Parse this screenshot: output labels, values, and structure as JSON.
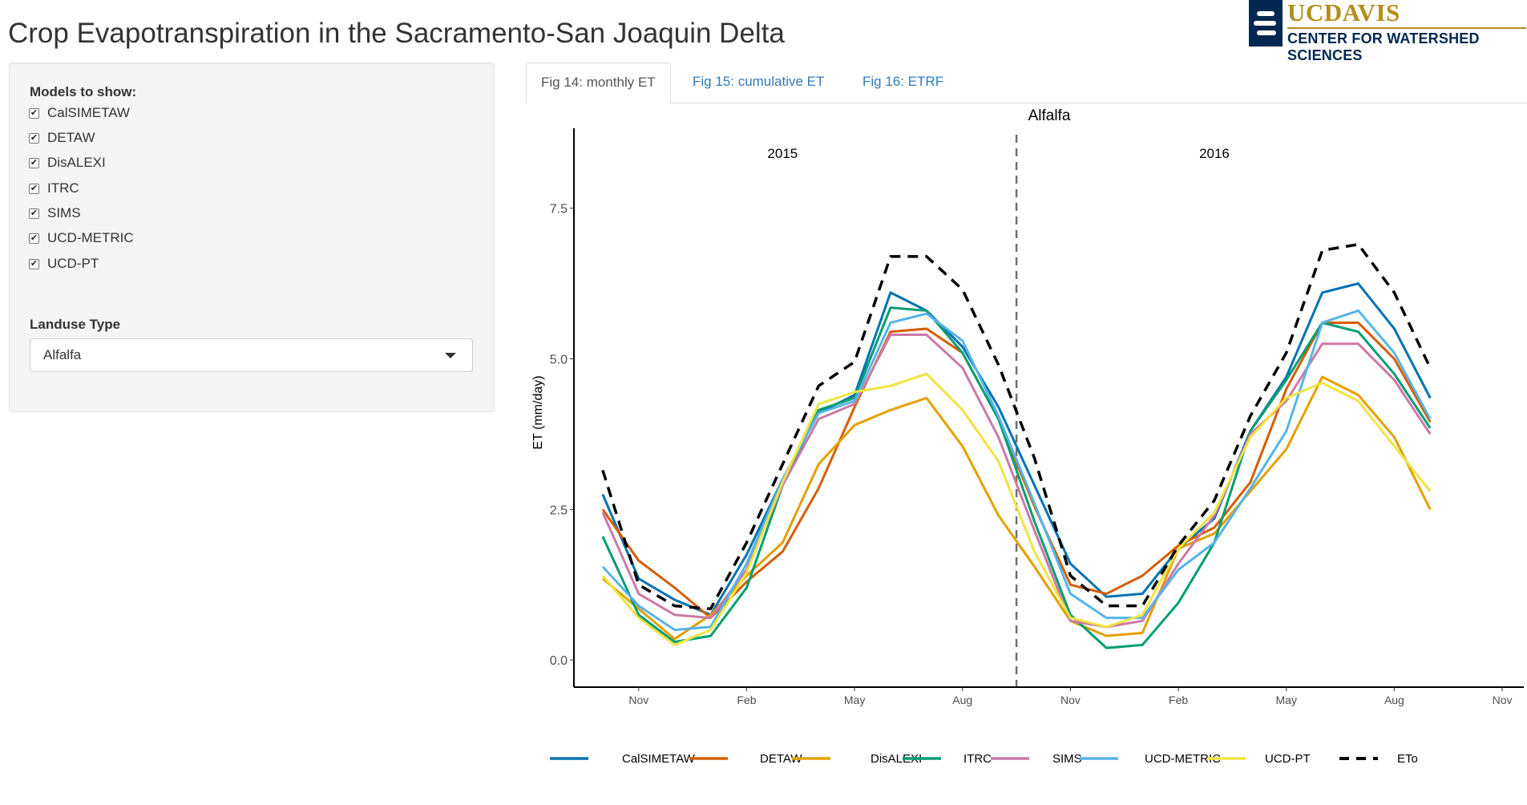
{
  "page": {
    "title": "Crop Evapotranspiration in the Sacramento-San Joaquin Delta",
    "logo": {
      "brand": "UCDAVIS",
      "subtitle": "CENTER FOR WATERSHED SCIENCES"
    }
  },
  "sidebar": {
    "models_label": "Models to show:",
    "models": [
      {
        "label": "CalSIMETAW",
        "checked": true
      },
      {
        "label": "DETAW",
        "checked": true
      },
      {
        "label": "DisALEXI",
        "checked": true
      },
      {
        "label": "ITRC",
        "checked": true
      },
      {
        "label": "SIMS",
        "checked": true
      },
      {
        "label": "UCD-METRIC",
        "checked": true
      },
      {
        "label": "UCD-PT",
        "checked": true
      }
    ],
    "landuse_label": "Landuse Type",
    "landuse_value": "Alfalfa"
  },
  "tabs": [
    {
      "label": "Fig 14: monthly ET",
      "active": true
    },
    {
      "label": "Fig 15: cumulative ET",
      "active": false
    },
    {
      "label": "Fig 16: ETRF",
      "active": false
    }
  ],
  "chart_data": {
    "type": "line",
    "title": "Alfalfa",
    "panel_labels": [
      "2015",
      "2016"
    ],
    "ylabel": "ET (mm/day)",
    "xlabel": "",
    "ylim": [
      -0.45,
      9.2
    ],
    "yticks": [
      0.0,
      2.5,
      5.0,
      7.5
    ],
    "ytick_labels": [
      "0.0",
      "2.5",
      "5.0",
      "7.5"
    ],
    "xlim": [
      -0.8,
      25.6
    ],
    "xticks": [
      1,
      4,
      7,
      10,
      13,
      16,
      19,
      22,
      25
    ],
    "xtick_labels": [
      "Nov",
      "Feb",
      "May",
      "Aug",
      "Nov",
      "Feb",
      "May",
      "Aug",
      "Nov"
    ],
    "x": [
      "2014-10",
      "2014-11",
      "2014-12",
      "2015-01",
      "2015-02",
      "2015-03",
      "2015-04",
      "2015-05",
      "2015-06",
      "2015-07",
      "2015-08",
      "2015-09",
      "2015-10",
      "2015-11",
      "2015-12",
      "2016-01",
      "2016-02",
      "2016-03",
      "2016-04",
      "2016-05",
      "2016-06",
      "2016-07",
      "2016-08",
      "2016-09"
    ],
    "water_year_divider": "2015-09/2015-10",
    "legend_position": "bottom",
    "grid": false,
    "series": [
      {
        "name": "CalSIMETAW",
        "color": "#0072B2",
        "dashed": false,
        "values": [
          2.75,
          1.35,
          1.0,
          0.75,
          1.75,
          3.0,
          4.1,
          4.4,
          6.1,
          5.8,
          5.2,
          4.2,
          2.9,
          1.6,
          1.05,
          1.1,
          1.85,
          2.35,
          3.8,
          4.7,
          6.1,
          6.25,
          5.5,
          4.35
        ]
      },
      {
        "name": "DETAW",
        "color": "#D55E00",
        "dashed": false,
        "values": [
          2.5,
          1.65,
          1.2,
          0.7,
          1.3,
          1.8,
          2.85,
          4.2,
          5.45,
          5.5,
          5.1,
          4.0,
          2.55,
          1.25,
          1.1,
          1.4,
          1.9,
          2.2,
          2.95,
          4.5,
          5.6,
          5.6,
          5.0,
          3.95
        ]
      },
      {
        "name": "DisALEXI",
        "color": "#E69F00",
        "dashed": false,
        "values": [
          1.35,
          0.85,
          0.35,
          0.75,
          1.4,
          1.95,
          3.25,
          3.9,
          4.15,
          4.35,
          3.55,
          2.4,
          1.55,
          0.65,
          0.4,
          0.45,
          1.85,
          2.1,
          2.8,
          3.5,
          4.7,
          4.4,
          3.7,
          2.5
        ]
      },
      {
        "name": "ITRC",
        "color": "#009E73",
        "dashed": false,
        "values": [
          2.05,
          0.75,
          0.3,
          0.4,
          1.2,
          2.9,
          4.15,
          4.35,
          5.85,
          5.8,
          5.1,
          4.0,
          2.3,
          0.75,
          0.2,
          0.25,
          0.95,
          1.95,
          3.8,
          4.65,
          5.6,
          5.45,
          4.75,
          3.85
        ]
      },
      {
        "name": "SIMS",
        "color": "#CC79A7",
        "dashed": false,
        "values": [
          2.45,
          1.1,
          0.75,
          0.7,
          1.5,
          2.9,
          4.0,
          4.25,
          5.4,
          5.4,
          4.85,
          3.7,
          2.15,
          0.65,
          0.55,
          0.65,
          1.6,
          2.4,
          3.75,
          4.3,
          5.25,
          5.25,
          4.65,
          3.75
        ]
      },
      {
        "name": "UCD-METRIC",
        "color": "#56B4E9",
        "dashed": false,
        "values": [
          1.55,
          0.9,
          0.5,
          0.55,
          1.6,
          3.0,
          4.1,
          4.3,
          5.6,
          5.75,
          5.3,
          4.05,
          2.6,
          1.1,
          0.7,
          0.7,
          1.5,
          1.95,
          2.85,
          3.8,
          5.6,
          5.8,
          5.1,
          4.0
        ]
      },
      {
        "name": "UCD-PT",
        "color": "#F0E442",
        "dashed": false,
        "values": [
          1.4,
          0.7,
          0.25,
          0.5,
          1.45,
          2.95,
          4.25,
          4.45,
          4.55,
          4.75,
          4.15,
          3.3,
          1.8,
          0.7,
          0.55,
          0.75,
          1.85,
          2.45,
          3.7,
          4.35,
          4.6,
          4.3,
          3.55,
          2.8
        ]
      },
      {
        "name": "ETo",
        "color": "#000000",
        "dashed": true,
        "values": [
          3.15,
          1.25,
          0.9,
          0.85,
          1.95,
          3.25,
          4.55,
          4.95,
          6.7,
          6.7,
          6.15,
          4.9,
          3.35,
          1.4,
          0.9,
          0.9,
          1.9,
          2.65,
          4.05,
          5.1,
          6.8,
          6.9,
          6.1,
          4.85
        ]
      }
    ]
  }
}
